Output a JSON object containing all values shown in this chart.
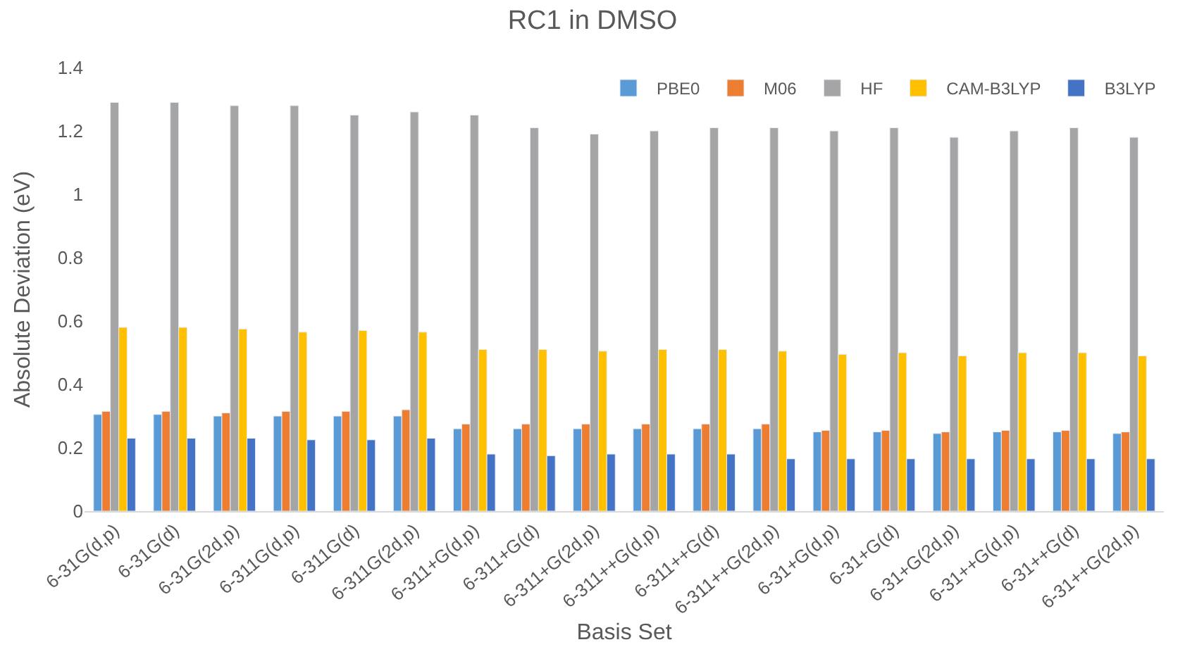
{
  "chart_data": {
    "type": "bar",
    "title": "RC1 in DMSO",
    "xlabel": "Basis Set",
    "ylabel": "Absolute Deviation (eV)",
    "categories": [
      "6-31G(d,p)",
      "6-31G(d)",
      "6-31G(2d,p)",
      "6-311G(d,p)",
      "6-311G(d)",
      "6-311G(2d,p)",
      "6-311+G(d,p)",
      "6-311+G(d)",
      "6-311+G(2d,p)",
      "6-311++G(d,p)",
      "6-311++G(d)",
      "6-311++G(2d,p)",
      "6-31+G(d,p)",
      "6-31+G(d)",
      "6-31+G(2d,p)",
      "6-31++G(d,p)",
      "6-31++G(d)",
      "6-31++G(2d,p)"
    ],
    "series": [
      {
        "name": "PBE0",
        "color": "#5b9bd5",
        "values": [
          0.305,
          0.305,
          0.3,
          0.3,
          0.3,
          0.3,
          0.26,
          0.26,
          0.26,
          0.26,
          0.26,
          0.26,
          0.25,
          0.25,
          0.245,
          0.25,
          0.25,
          0.245
        ]
      },
      {
        "name": "M06",
        "color": "#ed7d31",
        "values": [
          0.315,
          0.315,
          0.31,
          0.315,
          0.315,
          0.32,
          0.275,
          0.275,
          0.275,
          0.275,
          0.275,
          0.275,
          0.255,
          0.255,
          0.25,
          0.255,
          0.255,
          0.25
        ]
      },
      {
        "name": "HF",
        "color": "#a5a5a5",
        "values": [
          1.29,
          1.29,
          1.28,
          1.28,
          1.25,
          1.26,
          1.25,
          1.21,
          1.19,
          1.2,
          1.21,
          1.21,
          1.2,
          1.21,
          1.18,
          1.2,
          1.21,
          1.18
        ]
      },
      {
        "name": "CAM-B3LYP",
        "color": "#ffc000",
        "values": [
          0.58,
          0.58,
          0.575,
          0.565,
          0.57,
          0.565,
          0.51,
          0.51,
          0.505,
          0.51,
          0.51,
          0.505,
          0.495,
          0.5,
          0.49,
          0.5,
          0.5,
          0.49
        ]
      },
      {
        "name": "B3LYP",
        "color": "#4472c4",
        "values": [
          0.23,
          0.23,
          0.23,
          0.225,
          0.225,
          0.23,
          0.18,
          0.175,
          0.18,
          0.18,
          0.18,
          0.165,
          0.165,
          0.165,
          0.165,
          0.165,
          0.165,
          0.165
        ]
      }
    ],
    "ylim": [
      0,
      1.4
    ],
    "yticks": [
      0,
      {
        "value": 0.2,
        "label": "0.2"
      },
      {
        "value": 0.4,
        "label": "0.4"
      },
      {
        "value": 0.6,
        "label": "0.6"
      },
      {
        "value": 0.8,
        "label": "0.8"
      },
      1,
      {
        "value": 1.2,
        "label": "1.2"
      },
      {
        "value": 1.4,
        "label": "1.4"
      }
    ],
    "legend": "top right"
  }
}
